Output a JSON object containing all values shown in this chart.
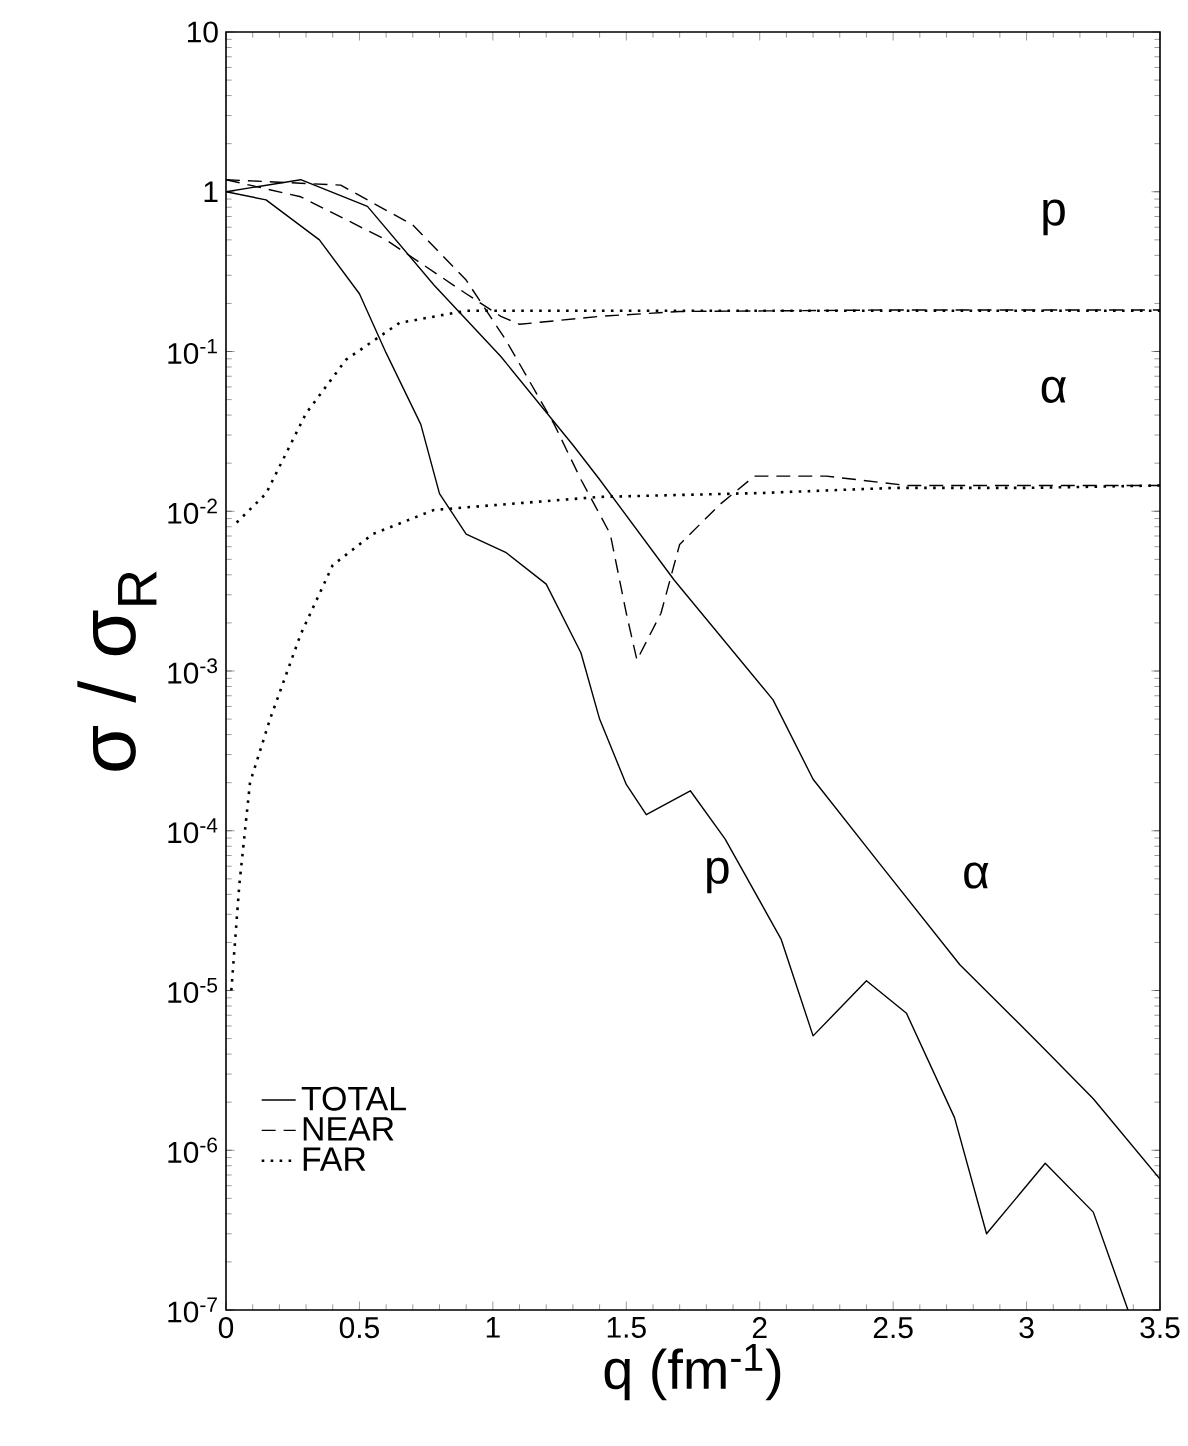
{
  "chart_data": {
    "type": "line",
    "log": "y",
    "xlabel": "q (fm$^{-1}$)",
    "ylabel": "σ / σ$_{R}$",
    "xlim": [
      0,
      3.5
    ],
    "xticks": [
      0,
      0.5,
      1,
      1.5,
      2,
      2.5,
      3,
      3.5
    ],
    "ylim": [
      1e-07,
      10
    ],
    "yticks": [
      {
        "value": 1e-07,
        "label": "10$^{-7}$"
      },
      {
        "value": 1e-06,
        "label": "10$^{-6}$"
      },
      {
        "value": 1e-05,
        "label": "10$^{-5}$"
      },
      {
        "value": 0.0001,
        "label": "10$^{-4}$"
      },
      {
        "value": 0.001,
        "label": "10$^{-3}$"
      },
      {
        "value": 0.01,
        "label": "10$^{-2}$"
      },
      {
        "value": 0.1,
        "label": "10$^{-1}$"
      },
      1,
      10
    ],
    "legend": "bottom left",
    "series": [
      {
        "name": "TOTAL",
        "color": "#000000",
        "line_style": "solid",
        "x": [
          0,
          0.15,
          0.35,
          0.5,
          0.6,
          0.73,
          0.8,
          0.9,
          1.05,
          1.2,
          1.33,
          1.4,
          1.5,
          1.575,
          1.74,
          1.87,
          2.08,
          2.2,
          2.4,
          2.55,
          2.73,
          2.85,
          3.07,
          3.25,
          3.38
        ],
        "values": [
          1.0,
          0.89,
          0.5,
          0.23,
          0.098,
          0.035,
          0.0129,
          0.0072,
          0.0055,
          0.0035,
          0.0013,
          0.0005,
          0.000195,
          0.000126,
          0.000178,
          8.9e-05,
          2.1e-05,
          5.2e-06,
          1.15e-05,
          7.2e-06,
          1.6e-06,
          3e-07,
          8.3e-07,
          4.1e-07,
          1e-07
        ]
      },
      {
        "name": "NEAR",
        "color": "#000000",
        "line_style": "dashed",
        "x": [
          0,
          0.28,
          0.6,
          0.9,
          1.03,
          1.1,
          1.4,
          1.7,
          2.5,
          3.5
        ],
        "values": [
          1.19,
          0.93,
          0.5,
          0.23,
          0.166,
          0.148,
          0.166,
          0.178,
          0.182,
          0.182
        ]
      },
      {
        "name": "FAR",
        "color": "#000000",
        "line_style": "dotted",
        "x": [
          0.04,
          0.15,
          0.3,
          0.45,
          0.65,
          0.9,
          1.2,
          1.6,
          2.0,
          2.5,
          3.0,
          3.5
        ],
        "values": [
          0.0085,
          0.0129,
          0.041,
          0.089,
          0.151,
          0.18,
          0.18,
          0.18,
          0.18,
          0.18,
          0.18,
          0.18
        ]
      },
      {
        "color": "#000000",
        "line_style": "solid",
        "x": [
          0,
          0.28,
          0.53,
          0.78,
          1.03,
          1.3,
          1.4,
          1.68,
          2.05,
          2.2,
          2.45,
          2.75,
          3.05,
          3.25,
          3.5
        ],
        "values": [
          1.0,
          1.19,
          0.81,
          0.26,
          0.093,
          0.026,
          0.0158,
          0.0037,
          0.00066,
          0.00021,
          6.2e-05,
          1.45e-05,
          4.6e-06,
          2.1e-06,
          6.6e-07
        ]
      },
      {
        "color": "#000000",
        "line_style": "dashed",
        "x": [
          0,
          0.43,
          0.7,
          0.9,
          1.05,
          1.23,
          1.33,
          1.44,
          1.5,
          1.54,
          1.63,
          1.7,
          1.85,
          1.98,
          2.25,
          2.55,
          3.5
        ],
        "values": [
          1.19,
          1.1,
          0.62,
          0.28,
          0.117,
          0.035,
          0.0158,
          0.0072,
          0.0023,
          0.00117,
          0.0023,
          0.0062,
          0.011,
          0.0166,
          0.0166,
          0.0145,
          0.0145
        ]
      },
      {
        "color": "#000000",
        "line_style": "dotted",
        "x": [
          0.02,
          0.05,
          0.09,
          0.165,
          0.28,
          0.4,
          0.55,
          0.78,
          1.4,
          2.0,
          2.5,
          3.0,
          3.5
        ],
        "values": [
          1e-05,
          4.6e-05,
          0.0002,
          0.0005,
          0.0017,
          0.0046,
          0.0072,
          0.0102,
          0.0123,
          0.013,
          0.014,
          0.014,
          0.0145
        ]
      }
    ],
    "annotations": [
      "p",
      "α",
      "p",
      "α"
    ]
  }
}
